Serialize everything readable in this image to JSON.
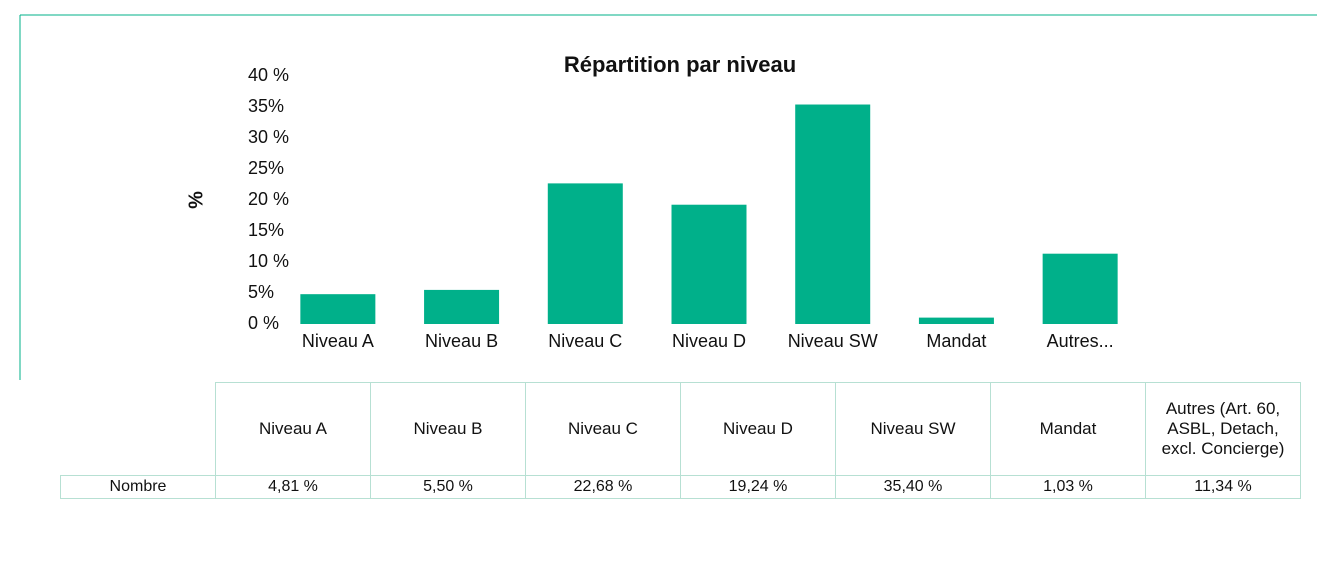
{
  "chart_data": {
    "type": "bar",
    "title": "Répartition par niveau",
    "y_label": "%",
    "categories": [
      "Niveau A",
      "Niveau B",
      "Niveau C",
      "Niveau D",
      "Niveau SW",
      "Mandat",
      "Autres..."
    ],
    "values": [
      4.81,
      5.5,
      22.68,
      19.24,
      35.4,
      1.03,
      11.34
    ],
    "value_labels": [
      "4,81 %",
      "5,50 %",
      "22,68 %",
      "19,24 %",
      "35,40 %",
      "1,03 %",
      "11,34 %"
    ],
    "color": "#00b08a",
    "ylim": [
      0,
      40
    ],
    "yticks": [
      {
        "value": 0,
        "label": "0 %"
      },
      {
        "value": 5,
        "label": "5%"
      },
      {
        "value": 10,
        "label": "10 %"
      },
      {
        "value": 15,
        "label": "15%"
      },
      {
        "value": 20,
        "label": "20 %"
      },
      {
        "value": 25,
        "label": "25%"
      },
      {
        "value": 30,
        "label": "30 %"
      },
      {
        "value": 35,
        "label": "35%"
      },
      {
        "value": 40,
        "label": "40 %"
      }
    ],
    "grid": false
  },
  "table": {
    "columns": [
      "Niveau A",
      "Niveau B",
      "Niveau C",
      "Niveau D",
      "Niveau SW",
      "Mandat",
      "Autres (Art. 60, ASBL, Detach, excl. Concierge)"
    ],
    "row_label": "Nombre"
  }
}
